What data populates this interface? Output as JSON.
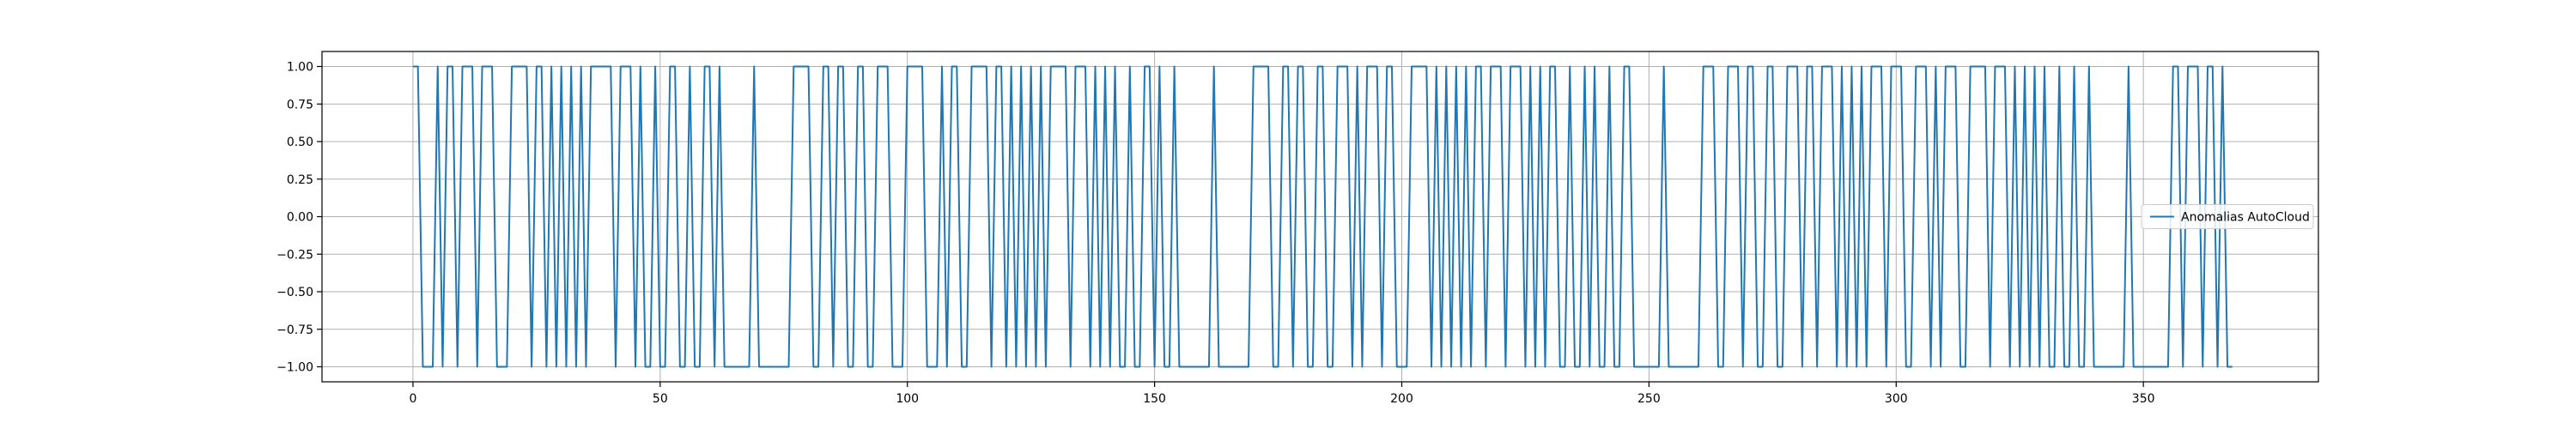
{
  "colors": {
    "background": "#ffffff",
    "series": "#1f77b4",
    "grid": "#b0b0b0",
    "axis": "#000000",
    "legend_border": "#cccccc"
  },
  "chart_data": {
    "type": "line",
    "title": "",
    "xlabel": "",
    "ylabel": "",
    "xlim": [
      -18.4,
      385.4
    ],
    "ylim": [
      -1.1,
      1.1
    ],
    "grid": true,
    "legend_position": "center-right",
    "x_ticks": [
      {
        "value": 0,
        "label": "0"
      },
      {
        "value": 50,
        "label": "50"
      },
      {
        "value": 100,
        "label": "100"
      },
      {
        "value": 150,
        "label": "150"
      },
      {
        "value": 200,
        "label": "200"
      },
      {
        "value": 250,
        "label": "250"
      },
      {
        "value": 300,
        "label": "300"
      },
      {
        "value": 350,
        "label": "350"
      }
    ],
    "y_ticks": [
      {
        "value": 1.0,
        "label": "1.00"
      },
      {
        "value": 0.75,
        "label": "0.75"
      },
      {
        "value": 0.5,
        "label": "0.50"
      },
      {
        "value": 0.25,
        "label": "0.25"
      },
      {
        "value": 0.0,
        "label": "0.00"
      },
      {
        "value": -0.25,
        "label": "−0.25"
      },
      {
        "value": -0.5,
        "label": "−0.50"
      },
      {
        "value": -0.75,
        "label": "−0.75"
      },
      {
        "value": -1.0,
        "label": "−1.00"
      }
    ],
    "series": [
      {
        "name": "Anomalias AutoCloud",
        "color": "#1f77b4",
        "x_start": 0,
        "x_step": 1,
        "values": [
          1,
          1,
          -1,
          -1,
          -1,
          1,
          -1,
          1,
          1,
          -1,
          1,
          1,
          1,
          -1,
          1,
          1,
          1,
          -1,
          -1,
          -1,
          1,
          1,
          1,
          1,
          -1,
          1,
          1,
          -1,
          1,
          -1,
          1,
          -1,
          1,
          -1,
          1,
          -1,
          1,
          1,
          1,
          1,
          1,
          -1,
          1,
          1,
          1,
          -1,
          1,
          -1,
          -1,
          1,
          -1,
          -1,
          1,
          1,
          -1,
          -1,
          1,
          -1,
          -1,
          1,
          1,
          -1,
          1,
          -1,
          -1,
          -1,
          -1,
          -1,
          -1,
          1,
          -1,
          -1,
          -1,
          -1,
          -1,
          -1,
          -1,
          1,
          1,
          1,
          1,
          -1,
          -1,
          1,
          1,
          -1,
          1,
          1,
          -1,
          -1,
          1,
          1,
          -1,
          -1,
          1,
          1,
          1,
          -1,
          -1,
          -1,
          1,
          1,
          1,
          1,
          -1,
          -1,
          -1,
          1,
          -1,
          1,
          1,
          -1,
          -1,
          1,
          1,
          1,
          1,
          -1,
          1,
          1,
          -1,
          1,
          -1,
          1,
          -1,
          1,
          -1,
          1,
          -1,
          1,
          1,
          1,
          1,
          -1,
          1,
          1,
          1,
          -1,
          1,
          -1,
          1,
          -1,
          1,
          -1,
          -1,
          1,
          -1,
          -1,
          1,
          1,
          -1,
          1,
          -1,
          -1,
          1,
          -1,
          -1,
          -1,
          -1,
          -1,
          -1,
          -1,
          1,
          -1,
          -1,
          -1,
          -1,
          -1,
          -1,
          -1,
          1,
          1,
          1,
          1,
          -1,
          -1,
          1,
          1,
          -1,
          1,
          1,
          -1,
          -1,
          1,
          1,
          -1,
          -1,
          1,
          1,
          1,
          -1,
          1,
          -1,
          1,
          1,
          1,
          -1,
          1,
          1,
          -1,
          -1,
          -1,
          1,
          1,
          1,
          1,
          -1,
          1,
          -1,
          1,
          -1,
          1,
          -1,
          1,
          -1,
          1,
          1,
          -1,
          1,
          1,
          1,
          -1,
          1,
          1,
          1,
          -1,
          1,
          -1,
          1,
          -1,
          1,
          1,
          -1,
          -1,
          1,
          -1,
          -1,
          1,
          -1,
          1,
          -1,
          -1,
          1,
          -1,
          -1,
          1,
          1,
          -1,
          -1,
          -1,
          -1,
          -1,
          -1,
          1,
          -1,
          -1,
          -1,
          -1,
          -1,
          -1,
          -1,
          1,
          1,
          1,
          -1,
          -1,
          1,
          1,
          1,
          -1,
          1,
          1,
          -1,
          -1,
          1,
          1,
          -1,
          -1,
          1,
          1,
          1,
          -1,
          1,
          1,
          -1,
          1,
          1,
          1,
          -1,
          1,
          -1,
          1,
          -1,
          1,
          -1,
          1,
          1,
          1,
          -1,
          1,
          1,
          1,
          -1,
          -1,
          1,
          1,
          1,
          -1,
          1,
          -1,
          1,
          1,
          1,
          -1,
          -1,
          1,
          1,
          1,
          1,
          -1,
          1,
          1,
          1,
          -1,
          1,
          -1,
          1,
          -1,
          1,
          -1,
          1,
          -1,
          -1,
          1,
          -1,
          -1,
          1,
          -1,
          -1,
          1,
          -1,
          -1,
          -1,
          -1,
          -1,
          -1,
          -1,
          1,
          -1,
          -1,
          -1,
          -1,
          -1,
          -1,
          -1,
          -1,
          1,
          1,
          -1,
          1,
          1,
          1,
          -1,
          1,
          1,
          -1,
          1,
          -1,
          -1
        ]
      }
    ]
  },
  "legend": {
    "label": "Anomalias AutoCloud"
  }
}
